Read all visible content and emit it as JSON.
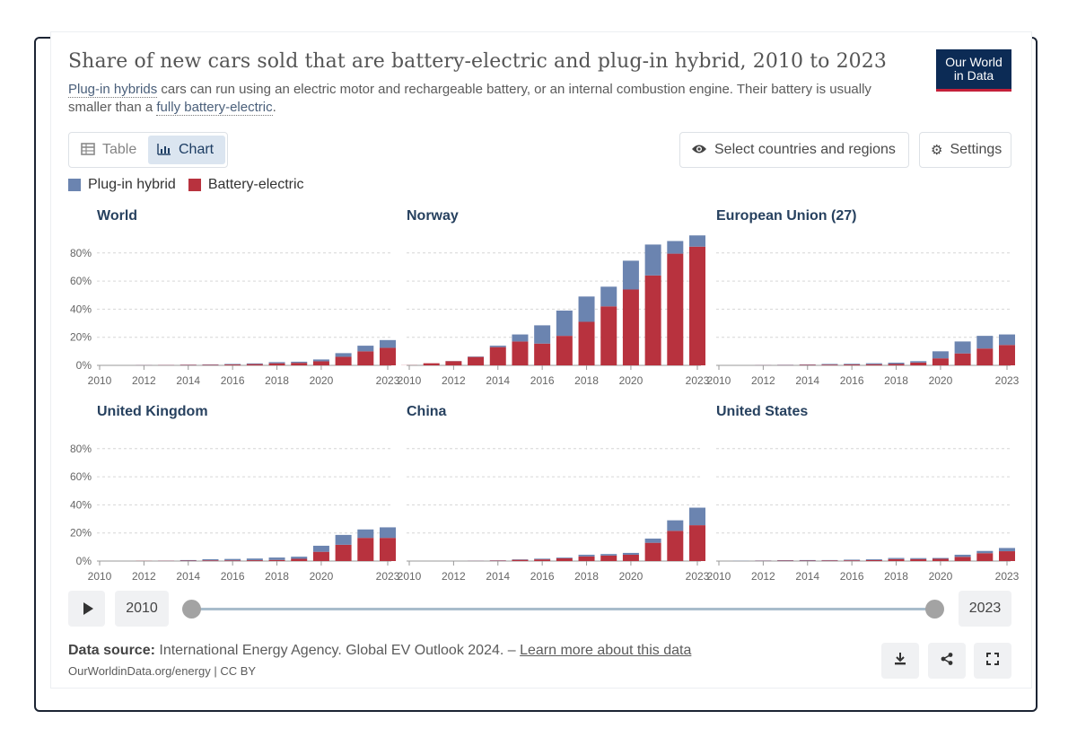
{
  "header": {
    "title": "Share of new cars sold that are battery-electric and plug-in hybrid, 2010 to 2023",
    "subtitle_link1": "Plug-in hybrids",
    "subtitle_mid": " cars can run using an electric motor and rechargeable battery, or an internal combustion engine. Their battery is usually smaller than a ",
    "subtitle_link2": "fully battery-electric",
    "subtitle_end": ".",
    "logo_line1": "Our World",
    "logo_line2": "in Data"
  },
  "toolbar": {
    "table_label": "Table",
    "chart_label": "Chart",
    "active_tab": "Chart",
    "select_label": "Select countries and regions",
    "settings_label": "Settings"
  },
  "legend": {
    "plugin_label": "Plug-in hybrid",
    "battery_label": "Battery-electric"
  },
  "colors": {
    "plugin": "#6b84b0",
    "battery": "#b8323e",
    "accent": "#0c2b55"
  },
  "timeline": {
    "start_year": "2010",
    "end_year": "2023",
    "range_start": 2010,
    "range_end": 2023
  },
  "footer": {
    "source_label": "Data source:",
    "source_text": " International Energy Agency. Global EV Outlook 2024. – ",
    "source_link": "Learn more about this data",
    "credit": "OurWorldinData.org/energy | CC BY"
  },
  "chart_data": {
    "type": "bar",
    "stacked": true,
    "x": [
      2010,
      2011,
      2012,
      2013,
      2014,
      2015,
      2016,
      2017,
      2018,
      2019,
      2020,
      2021,
      2022,
      2023
    ],
    "x_tick_labels": [
      "2010",
      "2012",
      "2014",
      "2016",
      "2018",
      "2020",
      "2023"
    ],
    "y_tick_labels": [
      "0%",
      "20%",
      "40%",
      "60%",
      "80%"
    ],
    "ylim": [
      0,
      90
    ],
    "grid": true,
    "legend_position": "top-left",
    "panels": [
      {
        "name": "World",
        "series": [
          {
            "name": "Battery-electric",
            "values": [
              0,
              0,
              0.1,
              0.2,
              0.3,
              0.4,
              0.6,
              0.9,
              1.5,
              1.8,
              2.9,
              6.1,
              10,
              12.5
            ]
          },
          {
            "name": "Plug-in hybrid",
            "values": [
              0,
              0,
              0.1,
              0.1,
              0.2,
              0.3,
              0.4,
              0.5,
              0.8,
              0.8,
              1.3,
              2.6,
              4,
              5.5
            ]
          }
        ]
      },
      {
        "name": "Norway",
        "series": [
          {
            "name": "Battery-electric",
            "values": [
              0.1,
              1.5,
              3,
              6,
              13,
              17,
              15.5,
              21,
              31,
              42,
              54,
              64,
              79.5,
              84.5
            ]
          },
          {
            "name": "Plug-in hybrid",
            "values": [
              0,
              0,
              0.1,
              0.3,
              1,
              5,
              13,
              18,
              18,
              14,
              20.5,
              22,
              9,
              8
            ]
          }
        ]
      },
      {
        "name": "European Union (27)",
        "series": [
          {
            "name": "Battery-electric",
            "values": [
              0,
              0,
              0.1,
              0.2,
              0.4,
              0.5,
              0.6,
              0.8,
              1,
              2,
              5,
              8.5,
              12,
              14.5
            ]
          },
          {
            "name": "Plug-in hybrid",
            "values": [
              0,
              0,
              0.1,
              0.2,
              0.3,
              0.5,
              0.5,
              0.7,
              0.9,
              1,
              5,
              8.5,
              9,
              7.5
            ]
          }
        ]
      },
      {
        "name": "United Kingdom",
        "series": [
          {
            "name": "Battery-electric",
            "values": [
              0,
              0,
              0.1,
              0.2,
              0.3,
              0.5,
              0.5,
              0.6,
              0.8,
              1.6,
              6.6,
              11.6,
              16.5,
              16.5
            ]
          },
          {
            "name": "Plug-in hybrid",
            "values": [
              0,
              0,
              0,
              0.1,
              0.4,
              0.8,
              1,
              1.2,
              1.7,
              1.5,
              4.3,
              7,
              6,
              7.5
            ]
          }
        ]
      },
      {
        "name": "China",
        "series": [
          {
            "name": "Battery-electric",
            "values": [
              0,
              0,
              0,
              0.1,
              0.3,
              0.9,
              1.2,
              2,
              3.3,
              3.9,
              4.5,
              13,
              21.5,
              25.5
            ]
          },
          {
            "name": "Plug-in hybrid",
            "values": [
              0,
              0,
              0,
              0.1,
              0.2,
              0.3,
              0.5,
              0.5,
              1.2,
              1.1,
              1.3,
              3,
              7.5,
              12.5
            ]
          }
        ]
      },
      {
        "name": "United States",
        "series": [
          {
            "name": "Battery-electric",
            "values": [
              0,
              0,
              0.2,
              0.3,
              0.3,
              0.4,
              0.5,
              0.7,
              1.4,
              1.4,
              1.6,
              3,
              5.6,
              7
            ]
          },
          {
            "name": "Plug-in hybrid",
            "values": [
              0,
              0.1,
              0.2,
              0.3,
              0.4,
              0.3,
              0.5,
              0.6,
              0.8,
              0.7,
              0.6,
              1.5,
              1.6,
              2.3
            ]
          }
        ]
      }
    ]
  }
}
